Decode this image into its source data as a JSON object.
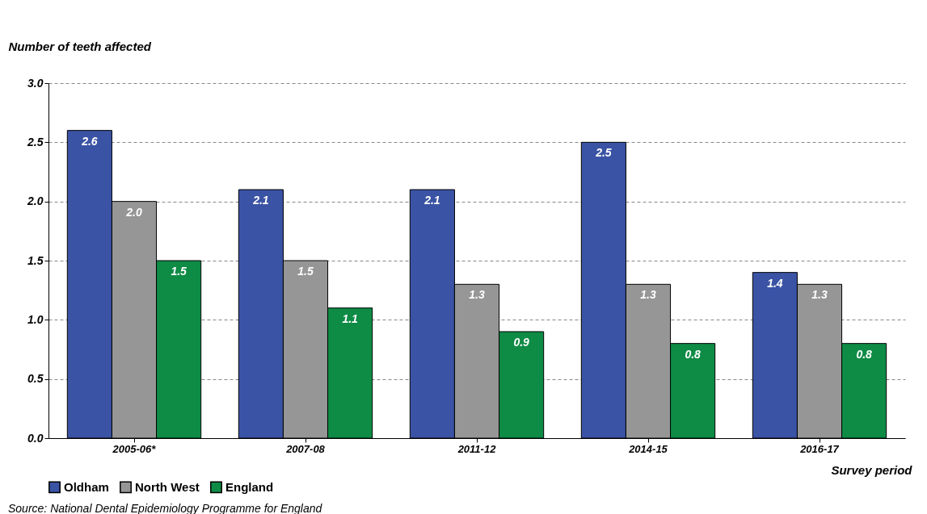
{
  "chart_data": {
    "type": "bar",
    "ylabel": "Number of teeth affected",
    "xlabel": "Survey period",
    "categories": [
      "2005-06*",
      "2007-08",
      "2011-12",
      "2014-15",
      "2016-17"
    ],
    "series": [
      {
        "name": "Oldham",
        "color": "#3a53a4",
        "values": [
          2.6,
          2.1,
          2.1,
          2.5,
          1.4
        ],
        "value_labels": [
          "2.6",
          "2.1",
          "2.1",
          "2.5",
          "1.4"
        ]
      },
      {
        "name": "North West",
        "color": "#969696",
        "values": [
          2.0,
          1.5,
          1.3,
          1.3,
          1.3
        ],
        "value_labels": [
          "2.0",
          "1.5",
          "1.3",
          "1.3",
          "1.3"
        ]
      },
      {
        "name": "England",
        "color": "#0e8b45",
        "values": [
          1.5,
          1.1,
          0.9,
          0.8,
          0.8
        ],
        "value_labels": [
          "1.5",
          "1.1",
          "0.9",
          "0.8",
          "0.8"
        ]
      }
    ],
    "ylim": [
      0,
      3
    ],
    "yticks": [
      {
        "value": 0,
        "label": "0.0"
      },
      0.5,
      {
        "value": 1,
        "label": "1.0"
      },
      1.5,
      {
        "value": 2,
        "label": "2.0"
      },
      2.5,
      {
        "value": 3,
        "label": "3.0"
      }
    ],
    "grid": "y",
    "legend": "bottom",
    "annotations": [
      "Source: National Dental Epidemiology Programme for England"
    ]
  }
}
